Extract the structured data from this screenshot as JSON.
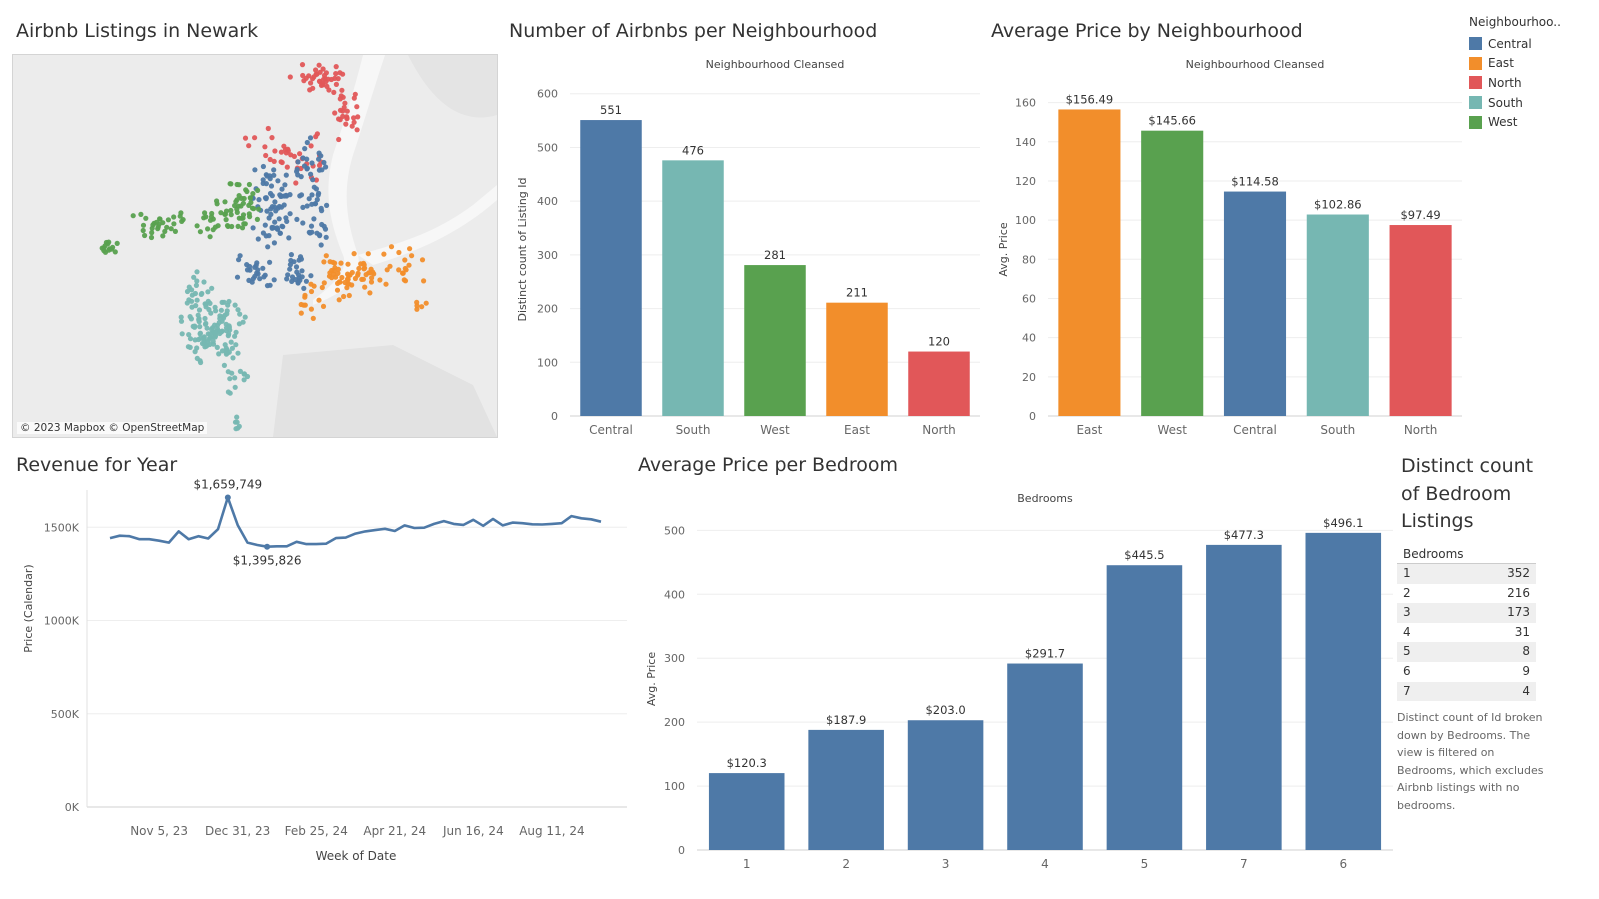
{
  "titles": {
    "map": "Airbnb Listings in Newark",
    "count": "Number of Airbnbs per Neighbourhood",
    "avgprice": "Average Price by Neighbourhood",
    "revenue": "Revenue for Year",
    "bedroom": "Average Price per Bedroom",
    "bedcount": "Distinct count of Bedroom Listings"
  },
  "map": {
    "attribution": "© 2023 Mapbox © OpenStreetMap"
  },
  "legend": {
    "title": "Neighbourhoo..",
    "items": [
      {
        "label": "Central",
        "color": "#4e79a7"
      },
      {
        "label": "East",
        "color": "#f28e2b"
      },
      {
        "label": "North",
        "color": "#e15759"
      },
      {
        "label": "South",
        "color": "#76b7b2"
      },
      {
        "label": "West",
        "color": "#59a14f"
      }
    ]
  },
  "bedroom_table": {
    "header": "Bedrooms",
    "rows": [
      {
        "bedrooms": "1",
        "count": "352"
      },
      {
        "bedrooms": "2",
        "count": "216"
      },
      {
        "bedrooms": "3",
        "count": "173"
      },
      {
        "bedrooms": "4",
        "count": "31"
      },
      {
        "bedrooms": "5",
        "count": "8"
      },
      {
        "bedrooms": "6",
        "count": "9"
      },
      {
        "bedrooms": "7",
        "count": "4"
      }
    ],
    "note": "Distinct count of Id broken down by Bedrooms. The view is filtered on Bedrooms, which excludes Airbnb listings with no bedrooms."
  },
  "chart_data": [
    {
      "type": "bar",
      "header": "Neighbourhood Cleansed",
      "ylabel": "Distinct count of Listing Id",
      "categories": [
        "Central",
        "South",
        "West",
        "East",
        "North"
      ],
      "values": [
        551,
        476,
        281,
        211,
        120
      ],
      "labels": [
        "551",
        "476",
        "281",
        "211",
        "120"
      ],
      "colors": [
        "#4e79a7",
        "#76b7b2",
        "#59a14f",
        "#f28e2b",
        "#e15759"
      ],
      "ylim": [
        0,
        620
      ],
      "yticks": [
        0,
        100,
        200,
        300,
        400,
        500,
        600
      ]
    },
    {
      "type": "bar",
      "header": "Neighbourhood Cleansed",
      "ylabel": "Avg. Price",
      "categories": [
        "East",
        "West",
        "Central",
        "South",
        "North"
      ],
      "values": [
        156.49,
        145.66,
        114.58,
        102.86,
        97.49
      ],
      "labels": [
        "$156.49",
        "$145.66",
        "$114.58",
        "$102.86",
        "$97.49"
      ],
      "colors": [
        "#f28e2b",
        "#59a14f",
        "#4e79a7",
        "#76b7b2",
        "#e15759"
      ],
      "ylim": [
        0,
        170
      ],
      "yticks": [
        0,
        20,
        40,
        60,
        80,
        100,
        120,
        140,
        160
      ]
    },
    {
      "type": "line",
      "xlabel": "Week of Date",
      "ylabel": "Price (Calendar)",
      "ylim": [
        0,
        1700000
      ],
      "yticks": [
        0,
        500000,
        1000000,
        1500000
      ],
      "ytick_labels": [
        "0K",
        "500K",
        "1000K",
        "1500K"
      ],
      "xtick_labels": [
        "Nov 5, 23",
        "Dec 31, 23",
        "Feb 25, 24",
        "Apr 21, 24",
        "Jun 16, 24",
        "Aug 11, 24"
      ],
      "xtick_index": [
        5,
        13,
        21,
        29,
        37,
        45
      ],
      "series": [
        {
          "values": [
            1442000,
            1455000,
            1452000,
            1436000,
            1436000,
            1428000,
            1418000,
            1478000,
            1436000,
            1452000,
            1440000,
            1490000,
            1659749,
            1512000,
            1418000,
            1405000,
            1395826,
            1398000,
            1398000,
            1422000,
            1410000,
            1410000,
            1412000,
            1442000,
            1445000,
            1466000,
            1478000,
            1485000,
            1492000,
            1480000,
            1510000,
            1496000,
            1498000,
            1518000,
            1533000,
            1518000,
            1513000,
            1540000,
            1508000,
            1545000,
            1510000,
            1525000,
            1522000,
            1516000,
            1515000,
            1518000,
            1522000,
            1560000,
            1548000,
            1543000,
            1530000
          ]
        }
      ],
      "annotations": [
        {
          "index": 12,
          "label": "$1,659,749"
        },
        {
          "index": 16,
          "label": "$1,395,826"
        }
      ]
    },
    {
      "type": "bar",
      "header": "Bedrooms",
      "ylabel": "Avg. Price",
      "categories": [
        "1",
        "2",
        "3",
        "4",
        "5",
        "7",
        "6"
      ],
      "values": [
        120.3,
        187.9,
        203.0,
        291.7,
        445.5,
        477.3,
        496.1
      ],
      "labels": [
        "$120.3",
        "$187.9",
        "$203.0",
        "$291.7",
        "$445.5",
        "$477.3",
        "$496.1"
      ],
      "colors": [
        "#4e79a7"
      ],
      "ylim": [
        0,
        535
      ],
      "yticks": [
        0,
        100,
        200,
        300,
        400,
        500
      ]
    }
  ]
}
